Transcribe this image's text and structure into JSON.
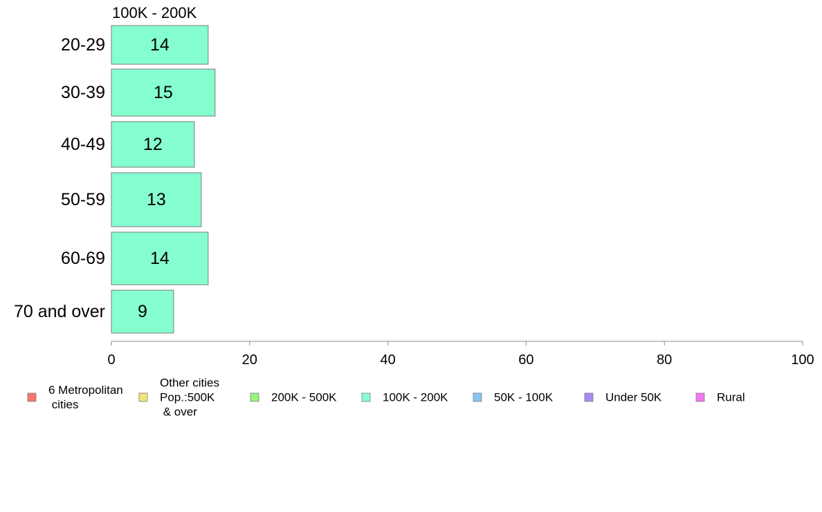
{
  "chart_data": {
    "type": "bar",
    "orientation": "horizontal",
    "panel_title": "100K - 200K",
    "categories": [
      "20-29",
      "30-39",
      "40-49",
      "50-59",
      "60-69",
      "70 and over"
    ],
    "series": [
      {
        "name": "100K - 200K",
        "values": [
          14,
          15,
          12,
          13,
          14,
          9
        ],
        "labels": [
          "14",
          "15",
          "12",
          "13",
          "14",
          "9"
        ],
        "color": "#85FFD0"
      }
    ],
    "xlim": [
      0,
      100
    ],
    "xticks": [
      0,
      20,
      40,
      60,
      80,
      100
    ],
    "xtick_labels": [
      "0",
      "20",
      "40",
      "60",
      "80",
      "100"
    ],
    "xlabel": "",
    "ylabel": "",
    "grid": false,
    "legend_position": "bottom",
    "legend": [
      {
        "lines": [
          "6 Metropolitan",
          " cities"
        ],
        "color": "#F8766D"
      },
      {
        "lines": [
          "Other cities",
          "Pop.:500K",
          " & over"
        ],
        "color": "#F2E47A"
      },
      {
        "lines": [
          "200K - 500K"
        ],
        "color": "#9AF27A"
      },
      {
        "lines": [
          "100K - 200K"
        ],
        "color": "#85FFD0"
      },
      {
        "lines": [
          "50K - 100K"
        ],
        "color": "#85C8F5"
      },
      {
        "lines": [
          "Under 50K"
        ],
        "color": "#A98AF2"
      },
      {
        "lines": [
          "Rural"
        ],
        "color": "#F27AF0"
      }
    ],
    "bar_border_color": "#7a7a7a",
    "axis_color": "#8a8a8a"
  }
}
